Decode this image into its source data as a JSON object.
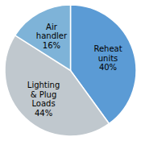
{
  "chart_data": {
    "type": "pie",
    "categories": [
      "Reheat\nunits",
      "Lighting\n& Plug\nLoads",
      "Air\nhandler"
    ],
    "values": [
      40,
      44,
      16
    ],
    "value_labels": [
      "40%",
      "44%",
      "16%"
    ],
    "data_labels": true,
    "colors": [
      "#5B9BD5",
      "#C0C8CE",
      "#7EB3D8"
    ]
  }
}
